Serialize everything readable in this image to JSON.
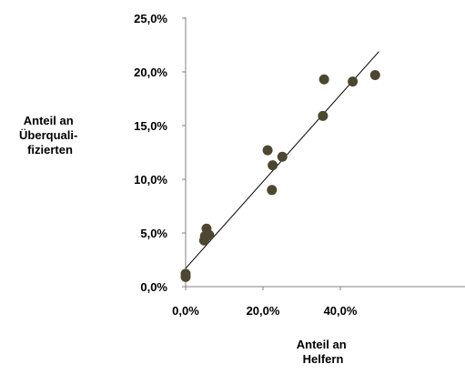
{
  "chart_data": {
    "type": "scatter",
    "title": "",
    "xlabel": [
      "Anteil an",
      "Helfern"
    ],
    "ylabel": [
      "Anteil an",
      "Überquali-",
      "fizierten"
    ],
    "xlim": [
      0,
      0.5
    ],
    "ylim": [
      0,
      0.25
    ],
    "x_ticks": [
      {
        "value": 0,
        "label": "0,0%"
      },
      {
        "value": 0.2,
        "label": "20,0%"
      },
      {
        "value": 0.4,
        "label": "40,0%"
      }
    ],
    "y_ticks": [
      {
        "value": 0,
        "label": "0,0%"
      },
      {
        "value": 0.05,
        "label": "5,0%"
      },
      {
        "value": 0.1,
        "label": "10,0%"
      },
      {
        "value": 0.15,
        "label": "15,0%"
      },
      {
        "value": 0.2,
        "label": "20,0%"
      },
      {
        "value": 0.25,
        "label": "25,0%"
      }
    ],
    "grid": false,
    "legend": "none",
    "marker_color": "#4d4730",
    "trendline": {
      "type": "linear",
      "x": [
        0,
        0.5
      ],
      "y": [
        0.017,
        0.219
      ],
      "color": "#000000"
    },
    "points": [
      {
        "x": 0.0,
        "y": 0.009
      },
      {
        "x": 0.0,
        "y": 0.012
      },
      {
        "x": 0.048,
        "y": 0.043
      },
      {
        "x": 0.05,
        "y": 0.047
      },
      {
        "x": 0.055,
        "y": 0.049
      },
      {
        "x": 0.061,
        "y": 0.048
      },
      {
        "x": 0.054,
        "y": 0.054
      },
      {
        "x": 0.212,
        "y": 0.127
      },
      {
        "x": 0.225,
        "y": 0.113
      },
      {
        "x": 0.223,
        "y": 0.09
      },
      {
        "x": 0.25,
        "y": 0.121
      },
      {
        "x": 0.355,
        "y": 0.159
      },
      {
        "x": 0.358,
        "y": 0.193
      },
      {
        "x": 0.432,
        "y": 0.191
      },
      {
        "x": 0.49,
        "y": 0.197
      }
    ]
  }
}
